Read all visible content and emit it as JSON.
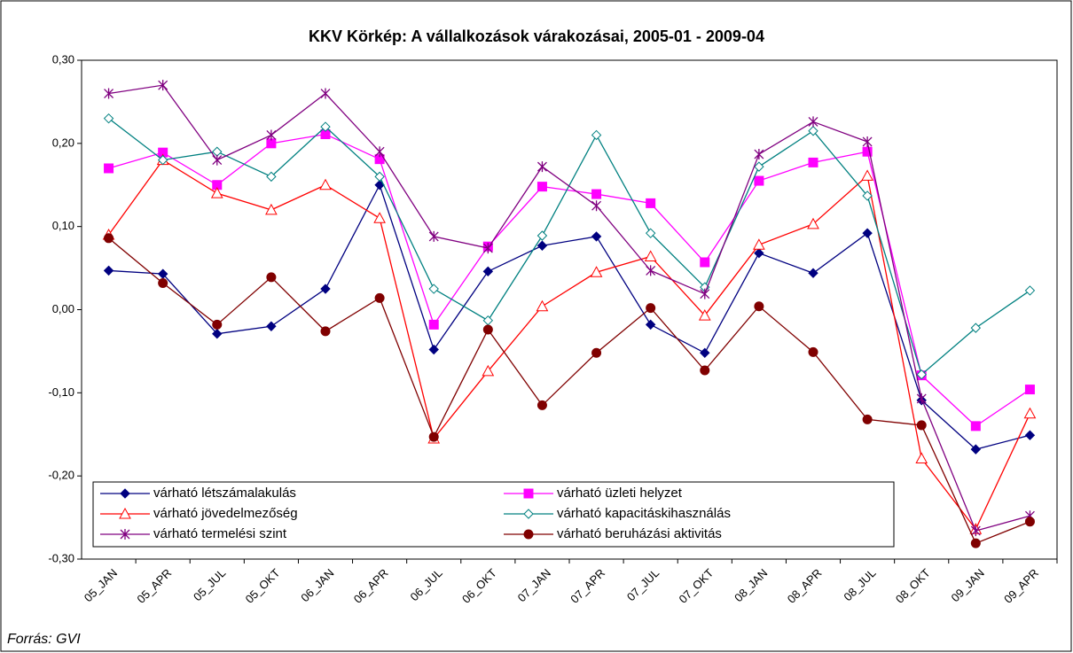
{
  "chart_data": {
    "type": "line",
    "title": "KKV Körkép: A vállalkozások várakozásai, 2005-01 - 2009-04",
    "source": "Forrás: GVI",
    "categories": [
      "05_JAN",
      "05_APR",
      "05_JUL",
      "05_OKT",
      "06_JAN",
      "06_APR",
      "06_JUL",
      "06_OKT",
      "07_JAN",
      "07_APR",
      "07_JUL",
      "07_OKT",
      "08_JAN",
      "08_APR",
      "08_JUL",
      "08_OKT",
      "09_JAN",
      "09_APR"
    ],
    "ylim": [
      -0.3,
      0.3
    ],
    "yticks": [
      {
        "value": 0.3,
        "label": "0,30"
      },
      {
        "value": 0.2,
        "label": "0,20"
      },
      {
        "value": 0.1,
        "label": "0,10"
      },
      {
        "value": 0,
        "label": "0,00"
      },
      {
        "value": -0.1,
        "label": "-0,10"
      },
      {
        "value": -0.2,
        "label": "-0,20"
      },
      {
        "value": -0.3,
        "label": "-0,30"
      }
    ],
    "series": [
      {
        "name": "várható létszámalakulás",
        "color": "#000080",
        "marker": "diamond-filled",
        "values": [
          0.047,
          0.043,
          -0.029,
          -0.02,
          0.025,
          0.15,
          -0.048,
          0.046,
          0.077,
          0.088,
          -0.018,
          -0.052,
          0.068,
          0.044,
          0.092,
          -0.109,
          -0.168,
          -0.151
        ]
      },
      {
        "name": "várható üzleti helyzet",
        "color": "#ff00ff",
        "marker": "square-filled",
        "values": [
          0.17,
          0.189,
          0.15,
          0.2,
          0.211,
          0.181,
          -0.018,
          0.076,
          0.148,
          0.139,
          0.128,
          0.057,
          0.155,
          0.177,
          0.19,
          -0.079,
          -0.14,
          -0.096
        ]
      },
      {
        "name": "várható jövedelmezőség",
        "color": "#ff0000",
        "marker": "triangle-open",
        "values": [
          0.09,
          0.18,
          0.14,
          0.12,
          0.15,
          0.11,
          -0.155,
          -0.074,
          0.004,
          0.045,
          0.064,
          -0.007,
          0.078,
          0.103,
          0.161,
          -0.179,
          -0.264,
          -0.125
        ]
      },
      {
        "name": "várható kapacitáskihasználás",
        "color": "#008080",
        "marker": "diamond-open",
        "values": [
          0.23,
          0.18,
          0.19,
          0.16,
          0.22,
          0.16,
          0.025,
          -0.013,
          0.089,
          0.21,
          0.092,
          0.027,
          0.172,
          0.215,
          0.137,
          -0.078,
          -0.022,
          0.023
        ]
      },
      {
        "name": "várható termelési szint",
        "color": "#800080",
        "marker": "asterisk",
        "values": [
          0.26,
          0.27,
          0.18,
          0.21,
          0.26,
          0.19,
          0.088,
          0.074,
          0.172,
          0.125,
          0.047,
          0.019,
          0.187,
          0.226,
          0.202,
          -0.107,
          -0.266,
          -0.248
        ]
      },
      {
        "name": "várható beruházási aktivitás",
        "color": "#800000",
        "marker": "circle-filled",
        "values": [
          0.086,
          0.032,
          -0.018,
          0.039,
          -0.026,
          0.014,
          -0.153,
          -0.024,
          -0.115,
          -0.052,
          0.002,
          -0.073,
          0.004,
          -0.051,
          -0.132,
          -0.139,
          -0.281,
          -0.255
        ]
      }
    ],
    "legend": "lower-left"
  }
}
